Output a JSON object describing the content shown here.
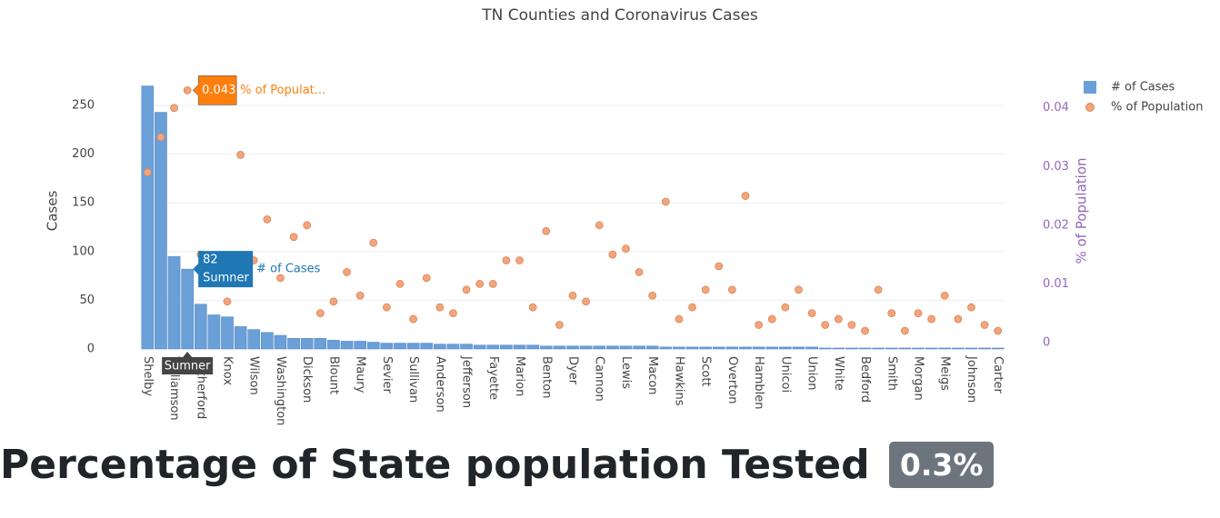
{
  "chart_data": {
    "type": "bar",
    "title": "TN Counties and Coronavirus Cases",
    "y_title": "Cases",
    "y2_title": "% of Population",
    "categories": [
      "Shelby",
      null,
      "Williamson",
      null,
      "Rutherford",
      null,
      "Knox",
      null,
      "Wilson",
      null,
      "Washington",
      null,
      "Dickson",
      null,
      "Blount",
      null,
      "Maury",
      null,
      "Sevier",
      null,
      "Sullivan",
      null,
      "Anderson",
      null,
      "Jefferson",
      null,
      "Fayette",
      null,
      "Marion",
      null,
      "Benton",
      null,
      "Dyer",
      null,
      "Cannon",
      null,
      "Lewis",
      null,
      "Macon",
      null,
      "Hawkins",
      null,
      "Scott",
      null,
      "Overton",
      null,
      "Hamblen",
      null,
      "Unicoi",
      null,
      "Union",
      null,
      "White",
      null,
      "Bedford",
      null,
      "Smith",
      null,
      "Morgan",
      null,
      "Meigs",
      null,
      "Johnson",
      null,
      "Carter"
    ],
    "series": [
      {
        "name": "# of Cases",
        "type": "bar",
        "axis": "y",
        "color": "#6a9fd8",
        "values": [
          270,
          243,
          95,
          82,
          46,
          35,
          33,
          23,
          20,
          17,
          14,
          11,
          11,
          11,
          9,
          8,
          8,
          7,
          6,
          6,
          6,
          6,
          5,
          5,
          5,
          4,
          4,
          4,
          4,
          4,
          3,
          3,
          3,
          3,
          3,
          3,
          3,
          3,
          3,
          2,
          2,
          2,
          2,
          2,
          2,
          2,
          2,
          2,
          2,
          2,
          2,
          1,
          1,
          1,
          1,
          1,
          1,
          1,
          1,
          1,
          1,
          1,
          1,
          1,
          1
        ]
      },
      {
        "name": "% of Population",
        "type": "scatter",
        "axis": "y2",
        "color": "#f2a47a",
        "values": [
          0.029,
          0.035,
          0.04,
          0.043,
          0.015,
          0.012,
          0.007,
          0.032,
          0.014,
          0.021,
          0.011,
          0.018,
          0.02,
          0.005,
          0.007,
          0.012,
          0.008,
          0.017,
          0.006,
          0.01,
          0.004,
          0.011,
          0.006,
          0.005,
          0.009,
          0.01,
          0.01,
          0.014,
          0.014,
          0.006,
          0.019,
          0.003,
          0.008,
          0.007,
          0.02,
          0.015,
          0.016,
          0.012,
          0.008,
          0.024,
          0.004,
          0.006,
          0.009,
          0.013,
          0.009,
          0.025,
          0.003,
          0.004,
          0.006,
          0.009,
          0.005,
          0.003,
          0.004,
          0.003,
          0.002,
          0.009,
          0.005,
          0.002,
          0.005,
          0.004,
          0.008,
          0.004,
          0.006,
          0.003,
          0.002
        ]
      }
    ],
    "ylim": [
      0,
      283.6
    ],
    "yticks": [
      0,
      50,
      100,
      150,
      200,
      250
    ],
    "y2lim": [
      -0.0011,
      0.046
    ],
    "y2ticks": [
      0,
      0.01,
      0.02,
      0.03,
      0.04
    ],
    "grid": true,
    "legend": "top-right",
    "hover": {
      "category": "Sumner",
      "truncated_name": "% of Populat..."
    }
  },
  "heading": {
    "text": "Percentage of State population Tested",
    "badge": "0.3%"
  }
}
